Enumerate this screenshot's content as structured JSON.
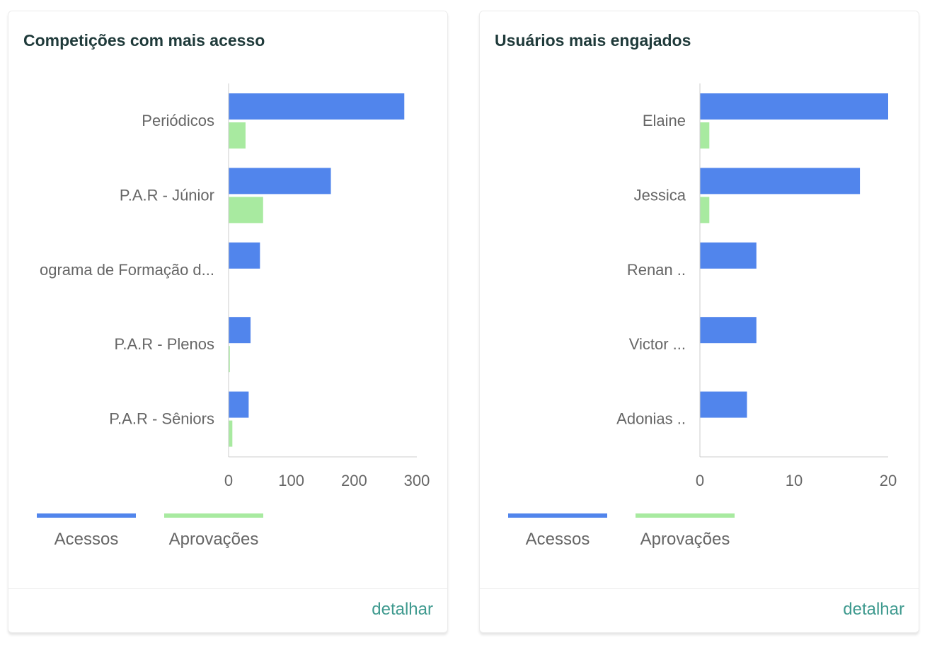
{
  "colors": {
    "accessos": "#5185ec",
    "aprovacoes": "#a8eaa0",
    "axis": "#cccccc",
    "text": "#666666",
    "link": "#3f9a8f",
    "title": "#1f3a3a"
  },
  "cards": [
    {
      "title": "Competições com mais acesso",
      "detail_label": "detalhar",
      "chart_data": {
        "type": "bar",
        "orientation": "horizontal",
        "title": "Competições com mais acesso",
        "categories": [
          "Periódicos",
          "P.A.R - Júnior",
          "ograma de Formação d...",
          "P.A.R - Plenos",
          "P.A.R - Sêniors"
        ],
        "series": [
          {
            "name": "Acessos",
            "color": "#5185ec",
            "values": [
              280,
              163,
              50,
              35,
              32
            ]
          },
          {
            "name": "Aprovações",
            "color": "#a8eaa0",
            "values": [
              27,
              55,
              0,
              2,
              6
            ]
          }
        ],
        "xlim": [
          0,
          300
        ],
        "xticks": [
          "0",
          "100",
          "200",
          "300"
        ],
        "legend": [
          "Acessos",
          "Aprovações"
        ]
      }
    },
    {
      "title": "Usuários mais engajados",
      "detail_label": "detalhar",
      "chart_data": {
        "type": "bar",
        "orientation": "horizontal",
        "title": "Usuários mais engajados",
        "categories": [
          "Elaine",
          "Jessica",
          "Renan ..",
          "Victor ...",
          "Adonias .."
        ],
        "series": [
          {
            "name": "Acessos",
            "color": "#5185ec",
            "values": [
              20,
              17,
              6,
              6,
              5
            ]
          },
          {
            "name": "Aprovações",
            "color": "#a8eaa0",
            "values": [
              1,
              1,
              0,
              0,
              0
            ]
          }
        ],
        "xlim": [
          0,
          20
        ],
        "xticks": [
          "0",
          "10",
          "20"
        ],
        "legend": [
          "Acessos",
          "Aprovações"
        ]
      }
    }
  ]
}
